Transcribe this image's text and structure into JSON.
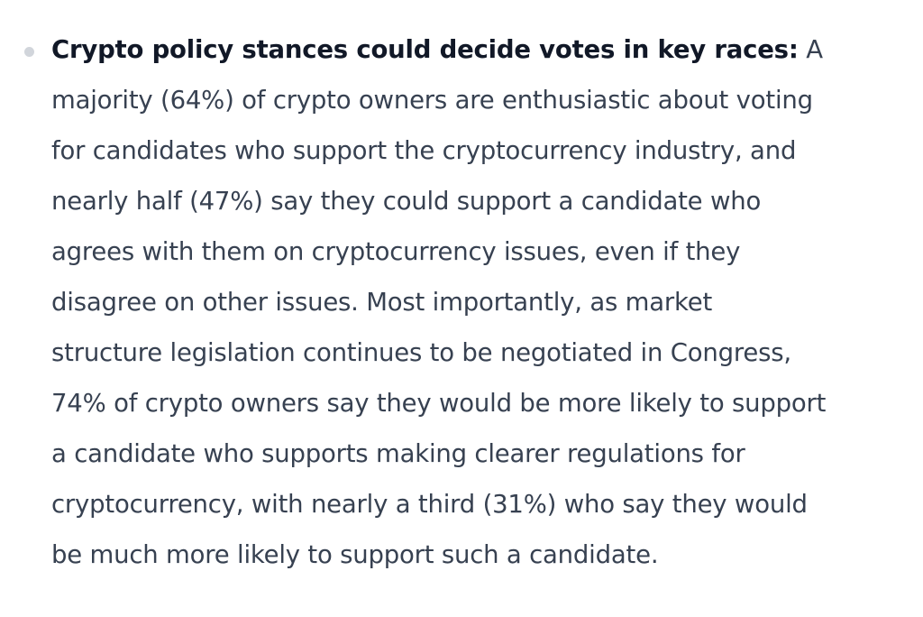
{
  "bullet": {
    "heading": "Crypto policy stances could decide votes in key races:",
    "lines": [
      " A",
      "majority (64%) of crypto owners are enthusiastic about voting",
      "for candidates who support the cryptocurrency industry, and",
      "nearly half (47%) say they could support a candidate who",
      "agrees with them on cryptocurrency issues, even if they",
      "disagree on other issues. Most importantly, as market",
      "structure legislation continues to be negotiated in Congress,",
      "74% of crypto owners say they would be more likely to support",
      "a candidate who supports making clearer regulations for",
      "cryptocurrency, with nearly a third (31%) who say they would",
      "be much more likely to support such a candidate."
    ]
  }
}
